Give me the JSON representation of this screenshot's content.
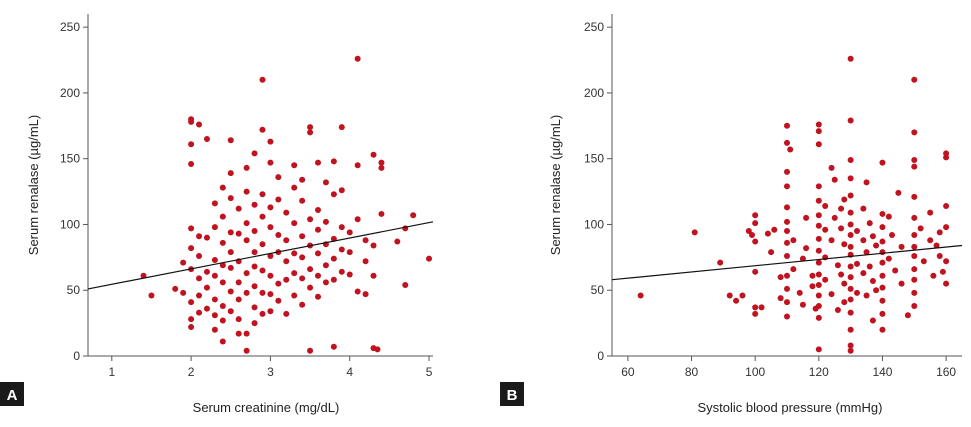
{
  "chart_data": [
    {
      "type": "scatter",
      "panel_label": "A",
      "xlabel": "Serum creatinine (mg/dL)",
      "ylabel": "Serum renalase (µg/mL)",
      "xlim": [
        0.7,
        5.05
      ],
      "ylim": [
        0,
        260
      ],
      "xticks": [
        1,
        2,
        3,
        4,
        5
      ],
      "yticks": [
        0,
        50,
        100,
        150,
        200,
        250
      ],
      "marker_color": "#c1121f",
      "trend_line": {
        "x": [
          0.7,
          5.05
        ],
        "y": [
          51,
          102
        ]
      },
      "points": [
        [
          1.4,
          61
        ],
        [
          1.5,
          46
        ],
        [
          1.8,
          51
        ],
        [
          1.9,
          71
        ],
        [
          1.9,
          48
        ],
        [
          2.0,
          180
        ],
        [
          2.0,
          178
        ],
        [
          2.0,
          161
        ],
        [
          2.0,
          146
        ],
        [
          2.0,
          97
        ],
        [
          2.0,
          82
        ],
        [
          2.0,
          66
        ],
        [
          2.0,
          41
        ],
        [
          2.0,
          28
        ],
        [
          2.0,
          22
        ],
        [
          2.1,
          91
        ],
        [
          2.1,
          76
        ],
        [
          2.1,
          59
        ],
        [
          2.1,
          46
        ],
        [
          2.1,
          33
        ],
        [
          2.1,
          176
        ],
        [
          2.2,
          165
        ],
        [
          2.2,
          90
        ],
        [
          2.2,
          64
        ],
        [
          2.2,
          52
        ],
        [
          2.2,
          36
        ],
        [
          2.3,
          116
        ],
        [
          2.3,
          98
        ],
        [
          2.3,
          73
        ],
        [
          2.3,
          61
        ],
        [
          2.3,
          43
        ],
        [
          2.3,
          31
        ],
        [
          2.3,
          20
        ],
        [
          2.4,
          128
        ],
        [
          2.4,
          106
        ],
        [
          2.4,
          86
        ],
        [
          2.4,
          69
        ],
        [
          2.4,
          56
        ],
        [
          2.4,
          38
        ],
        [
          2.4,
          27
        ],
        [
          2.4,
          11
        ],
        [
          2.5,
          164
        ],
        [
          2.5,
          139
        ],
        [
          2.5,
          120
        ],
        [
          2.5,
          94
        ],
        [
          2.5,
          79
        ],
        [
          2.5,
          67
        ],
        [
          2.5,
          49
        ],
        [
          2.5,
          34
        ],
        [
          2.6,
          112
        ],
        [
          2.6,
          93
        ],
        [
          2.6,
          72
        ],
        [
          2.6,
          56
        ],
        [
          2.6,
          43
        ],
        [
          2.6,
          28
        ],
        [
          2.6,
          17
        ],
        [
          2.7,
          143
        ],
        [
          2.7,
          125
        ],
        [
          2.7,
          101
        ],
        [
          2.7,
          88
        ],
        [
          2.7,
          63
        ],
        [
          2.7,
          48
        ],
        [
          2.7,
          17
        ],
        [
          2.7,
          4
        ],
        [
          2.8,
          154
        ],
        [
          2.8,
          115
        ],
        [
          2.8,
          95
        ],
        [
          2.8,
          79
        ],
        [
          2.8,
          68
        ],
        [
          2.8,
          53
        ],
        [
          2.8,
          37
        ],
        [
          2.8,
          25
        ],
        [
          2.9,
          210
        ],
        [
          2.9,
          172
        ],
        [
          2.9,
          123
        ],
        [
          2.9,
          106
        ],
        [
          2.9,
          85
        ],
        [
          2.9,
          65
        ],
        [
          2.9,
          48
        ],
        [
          2.9,
          32
        ],
        [
          3.0,
          163
        ],
        [
          3.0,
          147
        ],
        [
          3.0,
          113
        ],
        [
          3.0,
          98
        ],
        [
          3.0,
          76
        ],
        [
          3.0,
          61
        ],
        [
          3.0,
          47
        ],
        [
          3.0,
          34
        ],
        [
          3.1,
          136
        ],
        [
          3.1,
          119
        ],
        [
          3.1,
          92
        ],
        [
          3.1,
          79
        ],
        [
          3.1,
          55
        ],
        [
          3.1,
          42
        ],
        [
          3.2,
          109
        ],
        [
          3.2,
          88
        ],
        [
          3.2,
          72
        ],
        [
          3.2,
          58
        ],
        [
          3.2,
          32
        ],
        [
          3.3,
          145
        ],
        [
          3.3,
          128
        ],
        [
          3.3,
          101
        ],
        [
          3.3,
          78
        ],
        [
          3.3,
          63
        ],
        [
          3.3,
          46
        ],
        [
          3.4,
          134
        ],
        [
          3.4,
          118
        ],
        [
          3.4,
          91
        ],
        [
          3.4,
          75
        ],
        [
          3.4,
          59
        ],
        [
          3.4,
          39
        ],
        [
          3.5,
          174
        ],
        [
          3.5,
          170
        ],
        [
          3.5,
          104
        ],
        [
          3.5,
          84
        ],
        [
          3.5,
          66
        ],
        [
          3.5,
          52
        ],
        [
          3.5,
          4
        ],
        [
          3.6,
          147
        ],
        [
          3.6,
          111
        ],
        [
          3.6,
          96
        ],
        [
          3.6,
          78
        ],
        [
          3.6,
          61
        ],
        [
          3.6,
          45
        ],
        [
          3.7,
          132
        ],
        [
          3.7,
          102
        ],
        [
          3.7,
          85
        ],
        [
          3.7,
          69
        ],
        [
          3.7,
          56
        ],
        [
          3.8,
          148
        ],
        [
          3.8,
          123
        ],
        [
          3.8,
          89
        ],
        [
          3.8,
          74
        ],
        [
          3.8,
          58
        ],
        [
          3.8,
          7
        ],
        [
          3.9,
          174
        ],
        [
          3.9,
          126
        ],
        [
          3.9,
          98
        ],
        [
          3.9,
          81
        ],
        [
          3.9,
          64
        ],
        [
          4.0,
          94
        ],
        [
          4.0,
          79
        ],
        [
          4.0,
          62
        ],
        [
          4.1,
          226
        ],
        [
          4.1,
          145
        ],
        [
          4.1,
          104
        ],
        [
          4.1,
          49
        ],
        [
          4.2,
          88
        ],
        [
          4.2,
          72
        ],
        [
          4.2,
          47
        ],
        [
          4.3,
          153
        ],
        [
          4.3,
          84
        ],
        [
          4.3,
          61
        ],
        [
          4.3,
          6
        ],
        [
          4.35,
          5
        ],
        [
          4.4,
          147
        ],
        [
          4.4,
          143
        ],
        [
          4.4,
          108
        ],
        [
          4.6,
          87
        ],
        [
          4.7,
          97
        ],
        [
          4.7,
          54
        ],
        [
          4.8,
          107
        ],
        [
          5.0,
          74
        ]
      ]
    },
    {
      "type": "scatter",
      "panel_label": "B",
      "xlabel": "Systolic blood pressure (mmHg)",
      "ylabel": "Serum renalase (µg/mL)",
      "xlim": [
        55,
        165
      ],
      "ylim": [
        0,
        260
      ],
      "xticks": [
        60,
        80,
        100,
        120,
        140,
        160
      ],
      "yticks": [
        0,
        50,
        100,
        150,
        200,
        250
      ],
      "marker_color": "#c1121f",
      "trend_line": {
        "x": [
          55,
          165
        ],
        "y": [
          58,
          84
        ]
      },
      "points": [
        [
          64,
          46
        ],
        [
          81,
          94
        ],
        [
          89,
          71
        ],
        [
          92,
          46
        ],
        [
          94,
          42
        ],
        [
          96,
          46
        ],
        [
          98,
          95
        ],
        [
          99,
          92
        ],
        [
          100,
          107
        ],
        [
          100,
          101
        ],
        [
          100,
          87
        ],
        [
          100,
          64
        ],
        [
          100,
          37
        ],
        [
          100,
          32
        ],
        [
          102,
          37
        ],
        [
          104,
          93
        ],
        [
          105,
          79
        ],
        [
          106,
          96
        ],
        [
          108,
          60
        ],
        [
          108,
          44
        ],
        [
          110,
          175
        ],
        [
          110,
          162
        ],
        [
          110,
          140
        ],
        [
          110,
          129
        ],
        [
          110,
          113
        ],
        [
          110,
          102
        ],
        [
          110,
          95
        ],
        [
          110,
          86
        ],
        [
          110,
          76
        ],
        [
          110,
          61
        ],
        [
          110,
          51
        ],
        [
          110,
          41
        ],
        [
          110,
          30
        ],
        [
          111,
          157
        ],
        [
          112,
          88
        ],
        [
          112,
          66
        ],
        [
          114,
          48
        ],
        [
          115,
          74
        ],
        [
          115,
          39
        ],
        [
          116,
          105
        ],
        [
          116,
          82
        ],
        [
          118,
          61
        ],
        [
          118,
          53
        ],
        [
          119,
          36
        ],
        [
          120,
          176
        ],
        [
          120,
          171
        ],
        [
          120,
          161
        ],
        [
          120,
          129
        ],
        [
          120,
          118
        ],
        [
          120,
          107
        ],
        [
          120,
          99
        ],
        [
          120,
          89
        ],
        [
          120,
          80
        ],
        [
          120,
          71
        ],
        [
          120,
          62
        ],
        [
          120,
          54
        ],
        [
          120,
          46
        ],
        [
          120,
          38
        ],
        [
          120,
          29
        ],
        [
          120,
          5
        ],
        [
          122,
          114
        ],
        [
          122,
          96
        ],
        [
          122,
          75
        ],
        [
          122,
          58
        ],
        [
          124,
          143
        ],
        [
          124,
          88
        ],
        [
          124,
          47
        ],
        [
          125,
          134
        ],
        [
          125,
          105
        ],
        [
          126,
          69
        ],
        [
          126,
          35
        ],
        [
          127,
          112
        ],
        [
          127,
          97
        ],
        [
          127,
          62
        ],
        [
          128,
          119
        ],
        [
          128,
          85
        ],
        [
          128,
          55
        ],
        [
          128,
          41
        ],
        [
          130,
          226
        ],
        [
          130,
          179
        ],
        [
          130,
          149
        ],
        [
          130,
          135
        ],
        [
          130,
          122
        ],
        [
          130,
          109
        ],
        [
          130,
          100
        ],
        [
          130,
          92
        ],
        [
          130,
          83
        ],
        [
          130,
          77
        ],
        [
          130,
          68
        ],
        [
          130,
          60
        ],
        [
          130,
          51
        ],
        [
          130,
          43
        ],
        [
          130,
          33
        ],
        [
          130,
          20
        ],
        [
          130,
          8
        ],
        [
          130,
          4
        ],
        [
          132,
          95
        ],
        [
          132,
          70
        ],
        [
          132,
          48
        ],
        [
          134,
          112
        ],
        [
          134,
          88
        ],
        [
          134,
          63
        ],
        [
          135,
          132
        ],
        [
          135,
          79
        ],
        [
          135,
          46
        ],
        [
          136,
          101
        ],
        [
          136,
          68
        ],
        [
          137,
          91
        ],
        [
          137,
          57
        ],
        [
          137,
          27
        ],
        [
          138,
          84
        ],
        [
          138,
          50
        ],
        [
          140,
          147
        ],
        [
          140,
          108
        ],
        [
          140,
          98
        ],
        [
          140,
          87
        ],
        [
          140,
          79
        ],
        [
          140,
          71
        ],
        [
          140,
          61
        ],
        [
          140,
          52
        ],
        [
          140,
          42
        ],
        [
          140,
          32
        ],
        [
          140,
          20
        ],
        [
          142,
          106
        ],
        [
          142,
          74
        ],
        [
          143,
          92
        ],
        [
          144,
          65
        ],
        [
          145,
          124
        ],
        [
          146,
          83
        ],
        [
          146,
          55
        ],
        [
          148,
          31
        ],
        [
          150,
          210
        ],
        [
          150,
          170
        ],
        [
          150,
          149
        ],
        [
          150,
          144
        ],
        [
          150,
          121
        ],
        [
          150,
          105
        ],
        [
          150,
          92
        ],
        [
          150,
          83
        ],
        [
          150,
          76
        ],
        [
          150,
          66
        ],
        [
          150,
          58
        ],
        [
          150,
          48
        ],
        [
          150,
          38
        ],
        [
          152,
          97
        ],
        [
          153,
          72
        ],
        [
          155,
          109
        ],
        [
          155,
          88
        ],
        [
          156,
          61
        ],
        [
          157,
          84
        ],
        [
          158,
          94
        ],
        [
          158,
          76
        ],
        [
          159,
          64
        ],
        [
          160,
          154
        ],
        [
          160,
          151
        ],
        [
          160,
          114
        ],
        [
          160,
          98
        ],
        [
          160,
          72
        ],
        [
          160,
          55
        ]
      ]
    }
  ]
}
